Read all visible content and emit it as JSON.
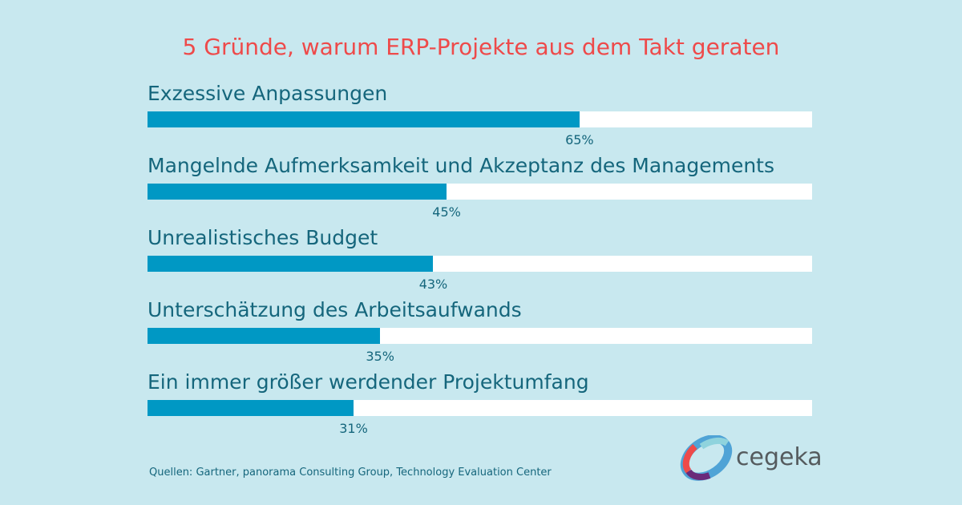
{
  "chart_data": {
    "type": "bar",
    "orientation": "horizontal",
    "title": "5 Gründe, warum ERP-Projekte aus dem Takt geraten",
    "categories": [
      "Exzessive Anpassungen",
      "Mangelnde Aufmerksamkeit und Akzeptanz des Managements",
      "Unrealistisches Budget",
      "Unterschätzung des Arbeitsaufwands",
      "Ein immer größer werdender Projektumfang"
    ],
    "values": [
      65,
      45,
      43,
      35,
      31
    ],
    "value_labels": [
      "65%",
      "45%",
      "43%",
      "35%",
      "31%"
    ],
    "xlim": [
      0,
      100
    ],
    "grid": false,
    "colors": {
      "fill": "#0098c4",
      "track": "#ffffff",
      "title": "#ee4a4a",
      "text": "#15667c",
      "background": "#c8e8ef"
    }
  },
  "source": "Quellen: Gartner, panorama Consulting Group, Technology Evaluation Center",
  "logo": {
    "text": "cegeka"
  }
}
